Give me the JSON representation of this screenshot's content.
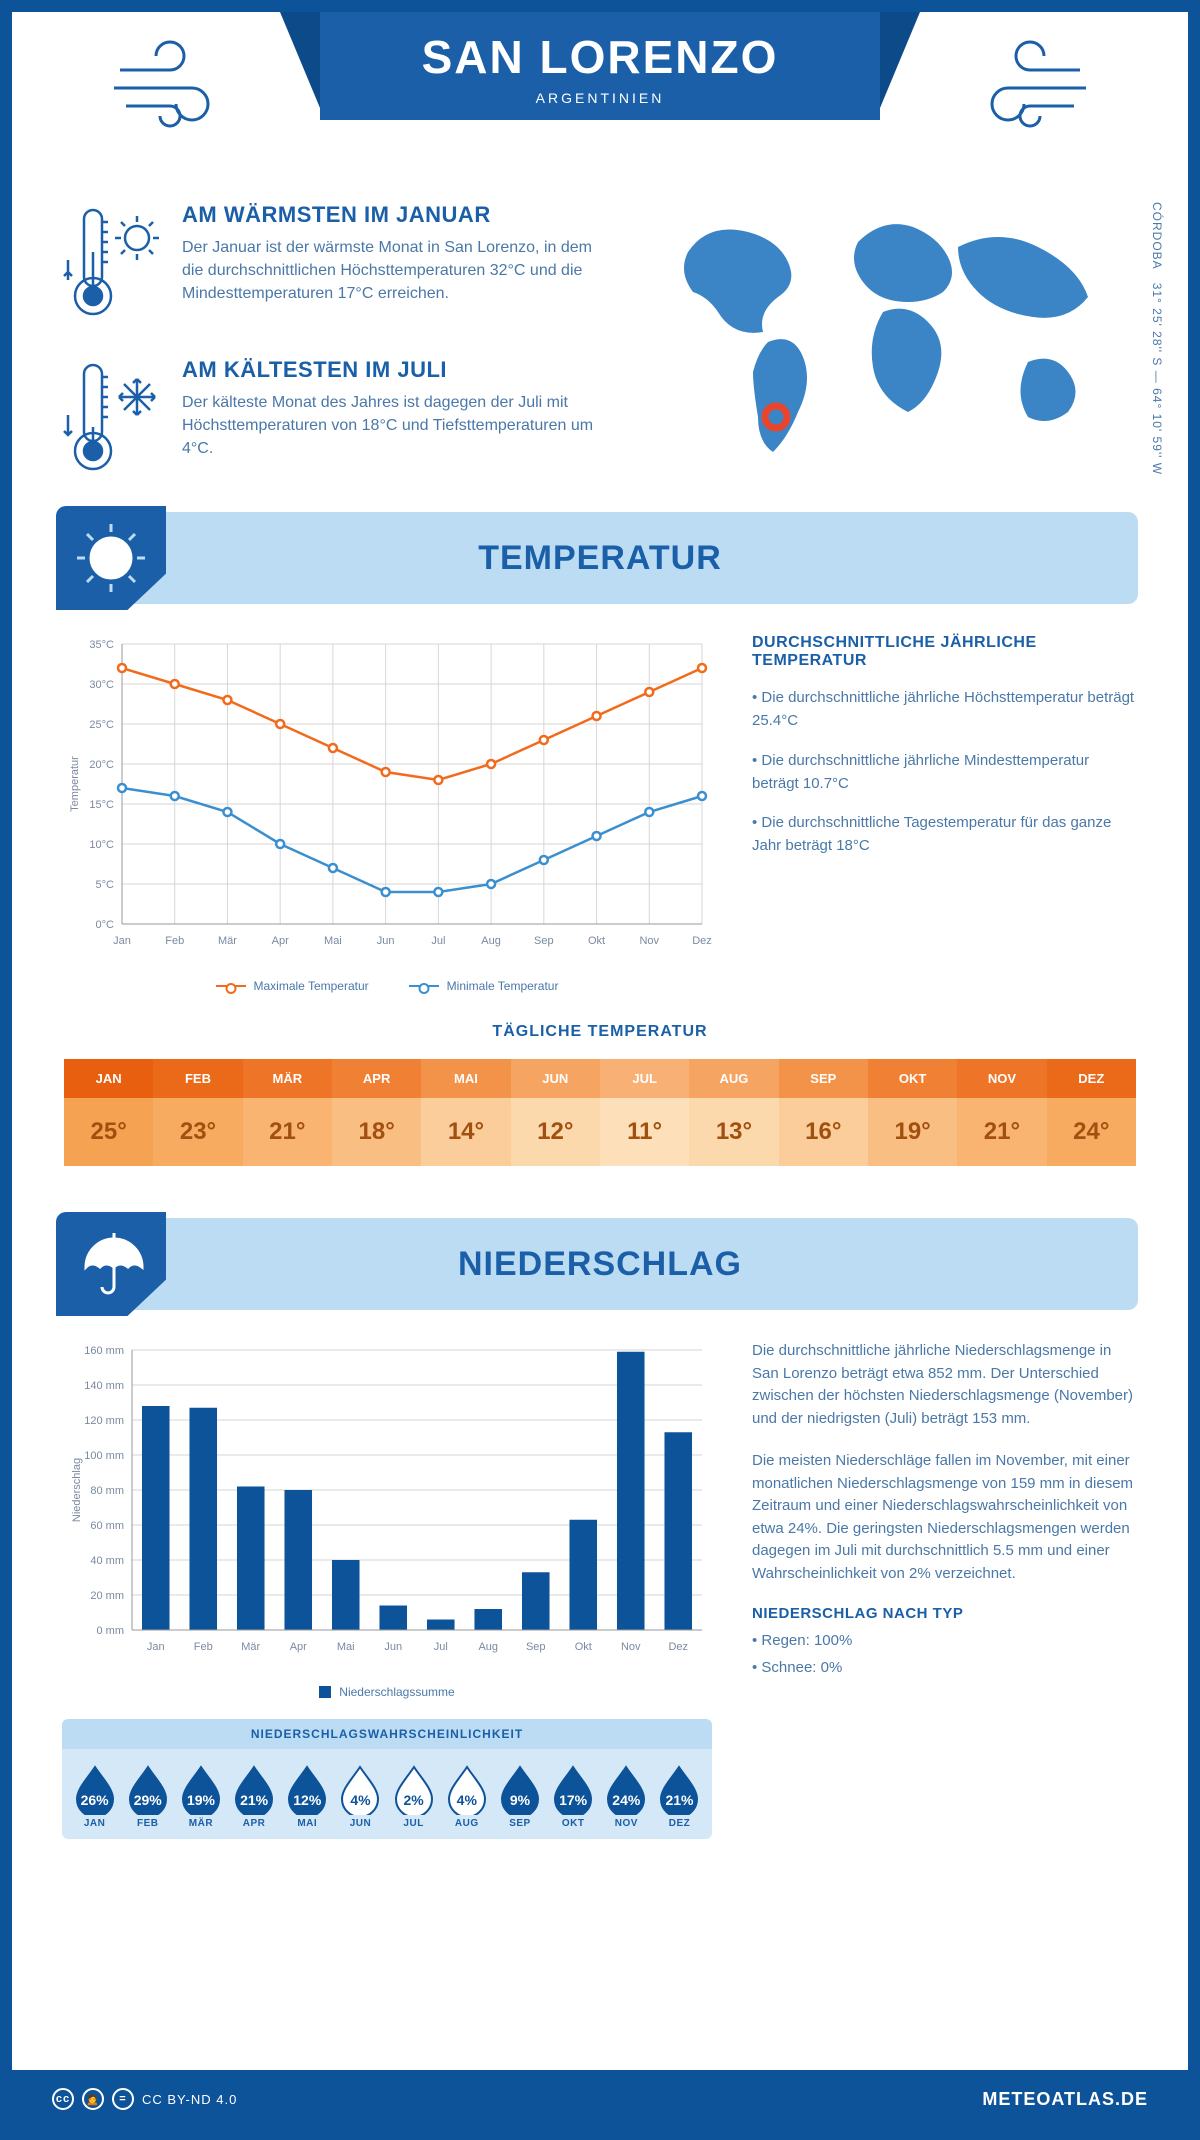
{
  "header": {
    "title": "SAN LORENZO",
    "subtitle": "ARGENTINIEN"
  },
  "coords": {
    "line1": "31° 25' 28'' S — 64° 10' 59'' W",
    "region": "CÓRDOBA"
  },
  "facts": {
    "warm": {
      "title": "AM WÄRMSTEN IM JANUAR",
      "body": "Der Januar ist der wärmste Monat in San Lorenzo, in dem die durchschnittlichen Höchsttemperaturen 32°C und die Mindesttemperaturen 17°C erreichen."
    },
    "cold": {
      "title": "AM KÄLTESTEN IM JULI",
      "body": "Der kälteste Monat des Jahres ist dagegen der Juli mit Höchsttemperaturen von 18°C und Tiefsttemperaturen um 4°C."
    }
  },
  "sections": {
    "temperature": "TEMPERATUR",
    "precip": "NIEDERSCHLAG"
  },
  "temp_chart": {
    "type": "line",
    "y_label": "Temperatur",
    "ylim": [
      0,
      35
    ],
    "ytick_step": 5,
    "y_suffix": "°C",
    "months": [
      "Jan",
      "Feb",
      "Mär",
      "Apr",
      "Mai",
      "Jun",
      "Jul",
      "Aug",
      "Sep",
      "Okt",
      "Nov",
      "Dez"
    ],
    "max_series": {
      "label": "Maximale Temperatur",
      "color": "#f26a1b",
      "values": [
        32,
        30,
        28,
        25,
        22,
        19,
        18,
        20,
        23,
        26,
        29,
        32
      ]
    },
    "min_series": {
      "label": "Minimale Temperatur",
      "color": "#3b8fcf",
      "values": [
        17,
        16,
        14,
        10,
        7,
        4,
        4,
        5,
        8,
        11,
        14,
        16
      ]
    },
    "grid_color": "#d6d6d6",
    "background_color": "#ffffff",
    "axis_fontsize": 11
  },
  "temp_text": {
    "heading": "DURCHSCHNITTLICHE JÄHRLICHE TEMPERATUR",
    "p1": "• Die durchschnittliche jährliche Höchsttemperatur beträgt 25.4°C",
    "p2": "• Die durchschnittliche jährliche Mindesttemperatur beträgt 10.7°C",
    "p3": "• Die durchschnittliche Tagestemperatur für das ganze Jahr beträgt 18°C"
  },
  "daily": {
    "title": "TÄGLICHE TEMPERATUR",
    "months": [
      "JAN",
      "FEB",
      "MÄR",
      "APR",
      "MAI",
      "JUN",
      "JUL",
      "AUG",
      "SEP",
      "OKT",
      "NOV",
      "DEZ"
    ],
    "values": [
      "25°",
      "23°",
      "21°",
      "18°",
      "14°",
      "12°",
      "11°",
      "13°",
      "16°",
      "19°",
      "21°",
      "24°"
    ],
    "header_colors": [
      "#e85f0f",
      "#eb6a1a",
      "#ee7527",
      "#f08134",
      "#f39249",
      "#f6a461",
      "#f8b074",
      "#f6a461",
      "#f39249",
      "#f08134",
      "#ee7527",
      "#eb6a1a"
    ],
    "value_colors": [
      "#f6a253",
      "#f7ab61",
      "#f8b470",
      "#f9be81",
      "#fbcd9b",
      "#fcd8ad",
      "#fddfb9",
      "#fcd8ad",
      "#fbcd9b",
      "#f9be81",
      "#f8b470",
      "#f7ab61"
    ]
  },
  "precip_chart": {
    "type": "bar",
    "y_label": "Niederschlag",
    "ylim": [
      0,
      160
    ],
    "ytick_step": 20,
    "y_suffix": " mm",
    "months": [
      "Jan",
      "Feb",
      "Mär",
      "Apr",
      "Mai",
      "Jun",
      "Jul",
      "Aug",
      "Sep",
      "Okt",
      "Nov",
      "Dez"
    ],
    "values": [
      128,
      127,
      82,
      80,
      40,
      14,
      6,
      12,
      33,
      63,
      159,
      113
    ],
    "bar_color": "#0d539a",
    "grid_color": "#d6d6d6",
    "legend": "Niederschlagssumme",
    "axis_fontsize": 11
  },
  "precip_text": {
    "p1": "Die durchschnittliche jährliche Niederschlagsmenge in San Lorenzo beträgt etwa 852 mm. Der Unterschied zwischen der höchsten Niederschlagsmenge (November) und der niedrigsten (Juli) beträgt 153 mm.",
    "p2": "Die meisten Niederschläge fallen im November, mit einer monatlichen Niederschlagsmenge von 159 mm in diesem Zeitraum und einer Niederschlagswahrscheinlichkeit von etwa 24%. Die geringsten Niederschlagsmengen werden dagegen im Juli mit durchschnittlich 5.5 mm und einer Wahrscheinlichkeit von 2% verzeichnet.",
    "type_heading": "NIEDERSCHLAG NACH TYP",
    "type_rain": "• Regen: 100%",
    "type_snow": "• Schnee: 0%"
  },
  "prob": {
    "title": "NIEDERSCHLAGSWAHRSCHEINLICHKEIT",
    "months": [
      "JAN",
      "FEB",
      "MÄR",
      "APR",
      "MAI",
      "JUN",
      "JUL",
      "AUG",
      "SEP",
      "OKT",
      "NOV",
      "DEZ"
    ],
    "values": [
      "26%",
      "29%",
      "19%",
      "21%",
      "12%",
      "4%",
      "2%",
      "4%",
      "9%",
      "17%",
      "24%",
      "21%"
    ],
    "drop_full": "#0d539a",
    "drop_empty": "#ffffff",
    "drop_stroke": "#0d539a",
    "fill": [
      true,
      true,
      true,
      true,
      true,
      false,
      false,
      false,
      true,
      true,
      true,
      true
    ]
  },
  "footer": {
    "license": "CC BY-ND 4.0",
    "brand": "METEOATLAS.DE"
  }
}
